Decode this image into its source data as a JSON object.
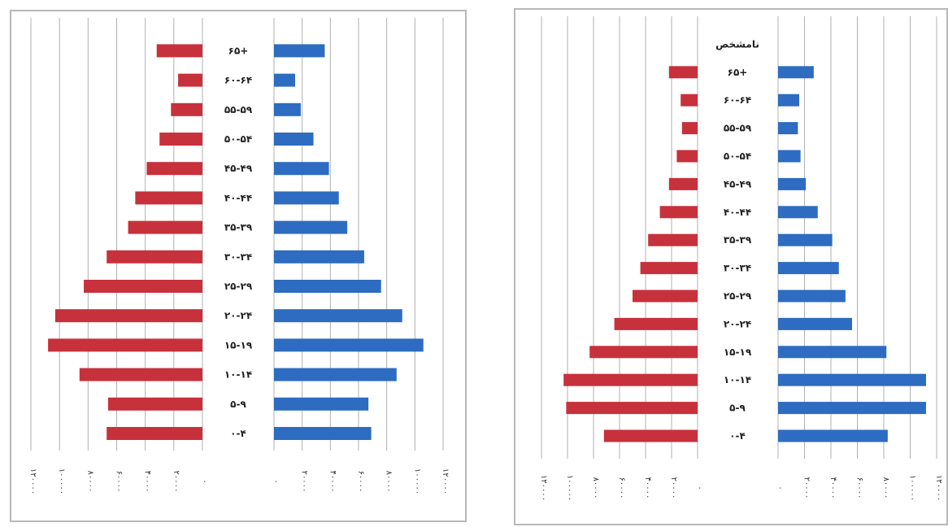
{
  "chart_data": [
    {
      "type": "bar",
      "orientation": "horizontal-population-pyramid",
      "categories": [
        "۰-۴",
        "۵-۹",
        "۱۰-۱۴",
        "۱۵-۱۹",
        "۲۰-۲۴",
        "۲۵-۲۹",
        "۳۰-۳۴",
        "۳۵-۳۹",
        "۴۰-۴۴",
        "۴۵-۴۹",
        "۵۰-۵۴",
        "۵۵-۵۹",
        "۶۰-۶۴",
        "۶۵+"
      ],
      "series": [
        {
          "side": "left",
          "color": "#c7313b",
          "values": [
            67000,
            66000,
            86000,
            108000,
            103000,
            83000,
            67000,
            52000,
            47000,
            39000,
            30000,
            22000,
            17000,
            32000
          ]
        },
        {
          "side": "right",
          "color": "#2d6cc0",
          "values": [
            69000,
            67000,
            87000,
            106000,
            91000,
            76000,
            64000,
            52000,
            46000,
            39000,
            28000,
            19000,
            15000,
            36000
          ]
        }
      ],
      "left_ticks": [
        "۱۲۰۰۰۰",
        "۱۰۰۰۰۰",
        "۸۰۰۰۰",
        "۶۰۰۰۰",
        "۴۰۰۰۰",
        "۲۰۰۰۰",
        "۰"
      ],
      "right_ticks": [
        "۰",
        "۲۰۰۰۰",
        "۴۰۰۰۰",
        "۶۰۰۰۰",
        "۸۰۰۰۰",
        "۱۰۰۰۰۰",
        "۱۲۰۰۰۰"
      ],
      "xlim": [
        0,
        120000
      ],
      "grid": true
    },
    {
      "type": "bar",
      "orientation": "horizontal-population-pyramid",
      "categories": [
        "۰-۴",
        "۵-۹",
        "۱۰-۱۴",
        "۱۵-۱۹",
        "۲۰-۲۴",
        "۲۵-۲۹",
        "۳۰-۳۴",
        "۳۵-۳۹",
        "۴۰-۴۴",
        "۴۵-۴۹",
        "۵۰-۵۴",
        "۵۵-۵۹",
        "۶۰-۶۴",
        "۶۵+",
        "نامشخص"
      ],
      "series": [
        {
          "side": "left",
          "color": "#c7313b",
          "values": [
            72000,
            101000,
            103000,
            83000,
            64000,
            50000,
            44000,
            38000,
            29000,
            22000,
            16000,
            12000,
            13000,
            22000,
            0
          ]
        },
        {
          "side": "right",
          "color": "#2d6cc0",
          "values": [
            83000,
            112000,
            112000,
            82000,
            56000,
            51000,
            46000,
            41000,
            30000,
            21000,
            17000,
            15000,
            16000,
            27000,
            0
          ]
        }
      ],
      "left_ticks": [
        "۱۲۰۰۰۰",
        "۱۰۰۰۰۰",
        "۸۰۰۰۰",
        "۶۰۰۰۰",
        "۴۰۰۰۰",
        "۲۰۰۰۰",
        "۰"
      ],
      "right_ticks": [
        "۰",
        "۲۰۰۰۰",
        "۴۰۰۰۰",
        "۶۰۰۰۰",
        "۸۰۰۰۰",
        "۱۰۰۰۰۰",
        "۱۲۰۰۰۰"
      ],
      "xlim": [
        0,
        120000
      ],
      "grid": true
    }
  ]
}
